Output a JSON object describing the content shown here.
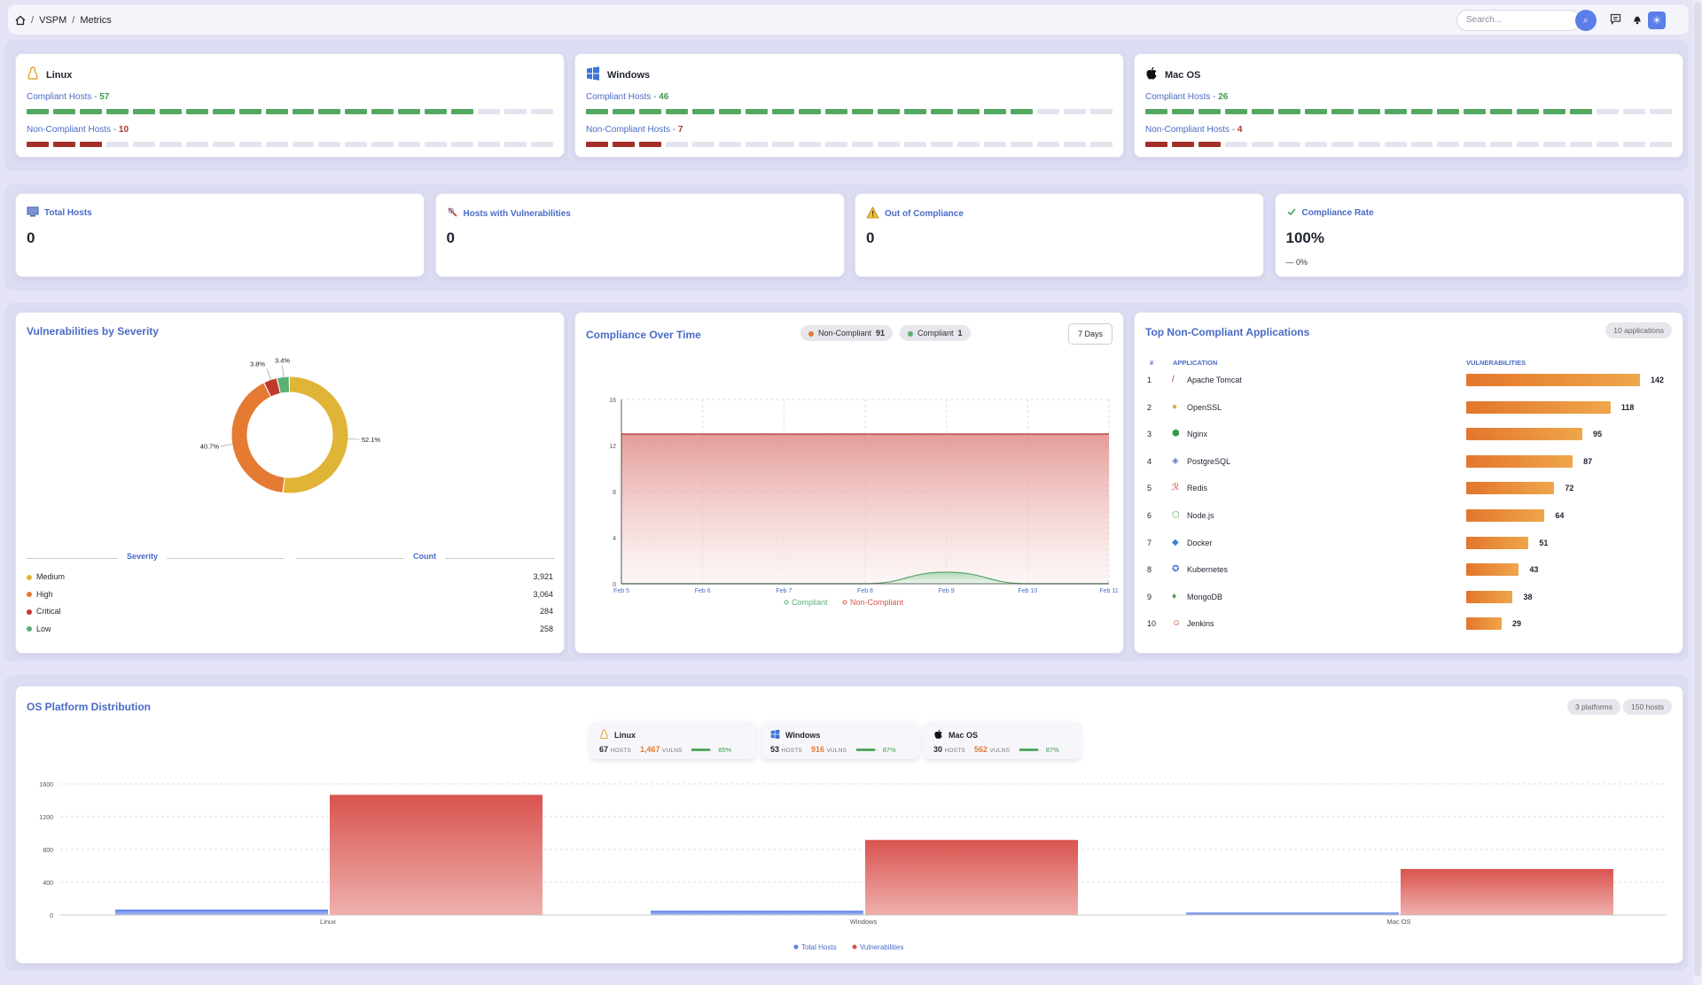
{
  "breadcrumb": {
    "home_icon": "home-icon",
    "items": [
      "VSPM",
      "Metrics"
    ]
  },
  "search": {
    "placeholder": "Search..."
  },
  "topbar_icons": [
    "search-icon",
    "chat-icon",
    "bell-icon",
    "sun-icon"
  ],
  "os_compliance": [
    {
      "name": "Linux",
      "icon": "linux-icon",
      "compliant_label": "Compliant Hosts - ",
      "compliant": "57",
      "noncompliant_label": "Non-Compliant Hosts - ",
      "noncompliant": "10",
      "compliant_segments": 17,
      "noncompliant_segments": 3,
      "total_segments": 20
    },
    {
      "name": "Windows",
      "icon": "windows-icon",
      "compliant_label": "Compliant Hosts - ",
      "compliant": "46",
      "noncompliant_label": "Non-Compliant Hosts - ",
      "noncompliant": "7",
      "compliant_segments": 17,
      "noncompliant_segments": 3,
      "total_segments": 20
    },
    {
      "name": "Mac OS",
      "icon": "apple-icon",
      "compliant_label": "Compliant Hosts - ",
      "compliant": "26",
      "noncompliant_label": "Non-Compliant Hosts - ",
      "noncompliant": "4",
      "compliant_segments": 17,
      "noncompliant_segments": 3,
      "total_segments": 20
    }
  ],
  "stats": [
    {
      "title": "Total Hosts",
      "value": "0",
      "icon": "monitor-icon"
    },
    {
      "title": "Hosts with Vulnerabilities",
      "value": "0",
      "icon": "bug-icon"
    },
    {
      "title": "Out of Compliance",
      "value": "0",
      "icon": "warning-icon"
    },
    {
      "title": "Compliance Rate",
      "value": "100%",
      "delta": "— 0%",
      "icon": "check-icon"
    }
  ],
  "severity": {
    "title": "Vulnerabilities by Severity",
    "col_severity": "Severity",
    "col_count": "Count",
    "items": [
      {
        "name": "Medium",
        "count": "3,921",
        "color": "#e0b437",
        "pct": "52.1%"
      },
      {
        "name": "High",
        "count": "3,064",
        "color": "#e57a32",
        "pct": "40.7%"
      },
      {
        "name": "Critical",
        "count": "284",
        "color": "#c0392b",
        "pct": "3.8%"
      },
      {
        "name": "Low",
        "count": "258",
        "color": "#5bb074",
        "pct": "3.4%"
      }
    ]
  },
  "compliance_time": {
    "title": "Compliance Over Time",
    "noncompliant_pill": "Non-Compliant",
    "noncompliant_val": "91",
    "compliant_pill": "Compliant",
    "compliant_val": "1",
    "range_button": "7 Days",
    "legend_compliant": "Compliant",
    "legend_noncompliant": "Non-Compliant",
    "chart_data": {
      "type": "area",
      "x": [
        "Feb 5",
        "Feb 6",
        "Feb 7",
        "Feb 8",
        "Feb 9",
        "Feb 10",
        "Feb 11"
      ],
      "yticks": [
        0,
        4,
        8,
        12,
        16
      ],
      "ylim": [
        0,
        16
      ],
      "series": [
        {
          "name": "Compliant",
          "values": [
            0,
            0,
            0,
            0,
            1,
            0,
            0
          ],
          "color": "#6bbf7c"
        },
        {
          "name": "Non-Compliant",
          "values": [
            13,
            13,
            13,
            13,
            13,
            13,
            13
          ],
          "color": "#c9453f"
        }
      ]
    }
  },
  "top_apps": {
    "title": "Top Non-Compliant Applications",
    "badge": "10 applications",
    "col_num": "#",
    "col_app": "APPLICATION",
    "col_vuln": "VULNERABILITIES",
    "max": 142,
    "rows": [
      {
        "n": "1",
        "name": "Apache Tomcat",
        "v": 142,
        "icon": "tomcat-icon",
        "glyph": "/",
        "c": "#c0392b"
      },
      {
        "n": "2",
        "name": "OpenSSL",
        "v": 118,
        "icon": "openssl-icon",
        "glyph": "●",
        "c": "#e0a53a"
      },
      {
        "n": "3",
        "name": "Nginx",
        "v": 95,
        "icon": "nginx-icon",
        "glyph": "⬢",
        "c": "#2e9a4a"
      },
      {
        "n": "4",
        "name": "PostgreSQL",
        "v": 87,
        "icon": "postgresql-icon",
        "glyph": "◈",
        "c": "#5a7bc6"
      },
      {
        "n": "5",
        "name": "Redis",
        "v": 72,
        "icon": "redis-icon",
        "glyph": "ℛ",
        "c": "#c0392b"
      },
      {
        "n": "6",
        "name": "Node.js",
        "v": 64,
        "icon": "nodejs-icon",
        "glyph": "⬡",
        "c": "#4caf50"
      },
      {
        "n": "7",
        "name": "Docker",
        "v": 51,
        "icon": "docker-icon",
        "glyph": "◆",
        "c": "#3b82d6"
      },
      {
        "n": "8",
        "name": "Kubernetes",
        "v": 43,
        "icon": "kubernetes-icon",
        "glyph": "✪",
        "c": "#3f6fd8"
      },
      {
        "n": "9",
        "name": "MongoDB",
        "v": 38,
        "icon": "mongodb-icon",
        "glyph": "♦",
        "c": "#3d9a4d"
      },
      {
        "n": "10",
        "name": "Jenkins",
        "v": 29,
        "icon": "jenkins-icon",
        "glyph": "☺",
        "c": "#c0392b"
      }
    ]
  },
  "os_dist": {
    "title": "OS Platform Distribution",
    "badge_platforms": "3 platforms",
    "badge_hosts": "150 hosts",
    "hosts_label": "HOSTS",
    "vulns_label": "VULNS",
    "platforms": [
      {
        "name": "Linux",
        "hosts": "67",
        "vulns": "1,467",
        "pct": "85%",
        "pct_val": 85,
        "icon": "linux-icon"
      },
      {
        "name": "Windows",
        "hosts": "53",
        "vulns": "916",
        "pct": "87%",
        "pct_val": 87,
        "icon": "windows-icon"
      },
      {
        "name": "Mac OS",
        "hosts": "30",
        "vulns": "562",
        "pct": "87%",
        "pct_val": 87,
        "icon": "apple-icon"
      }
    ],
    "legend_hosts": "Total Hosts",
    "legend_vulns": "Vulnerabilities",
    "chart_data": {
      "type": "bar",
      "categories": [
        "Linux",
        "Windows",
        "Mac OS"
      ],
      "yticks": [
        0,
        400,
        800,
        1200,
        1600
      ],
      "ylim": [
        0,
        1600
      ],
      "series": [
        {
          "name": "Total Hosts",
          "values": [
            67,
            53,
            30
          ],
          "color": "#5b7ee8"
        },
        {
          "name": "Vulnerabilities",
          "values": [
            1467,
            916,
            562
          ],
          "color": "#d9534f"
        }
      ]
    }
  }
}
